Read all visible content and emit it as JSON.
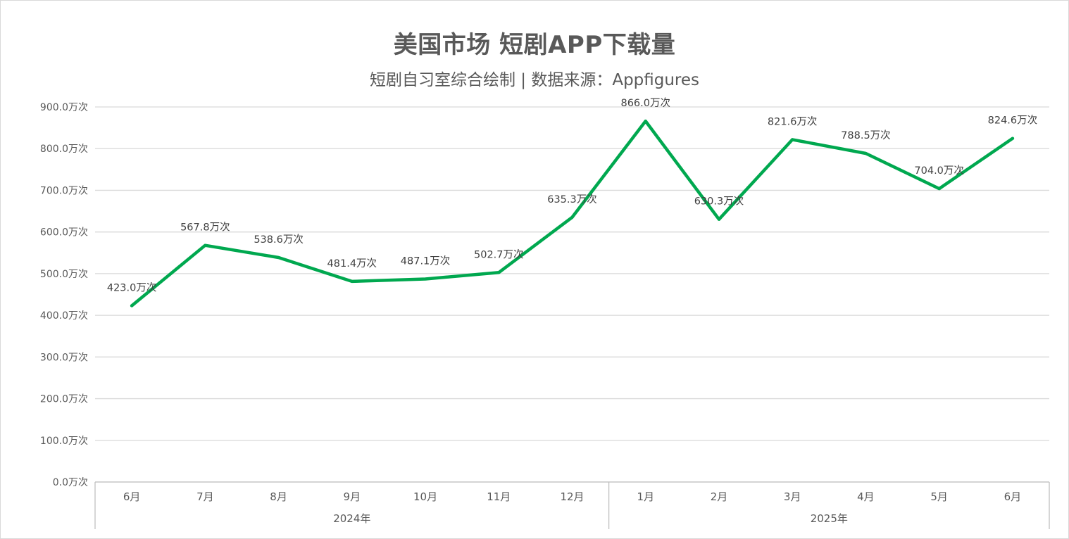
{
  "chart_data": {
    "type": "line",
    "title": "美国市场 短剧APP下载量",
    "subtitle": "短剧自习室综合绘制 | 数据来源：Appfigures",
    "categories": [
      "6月",
      "7月",
      "8月",
      "9月",
      "10月",
      "11月",
      "12月",
      "1月",
      "2月",
      "3月",
      "4月",
      "5月",
      "6月"
    ],
    "category_groups": [
      {
        "label": "2024年",
        "count": 7
      },
      {
        "label": "2025年",
        "count": 6
      }
    ],
    "series": [
      {
        "values": [
          423.0,
          567.8,
          538.6,
          481.4,
          487.1,
          502.7,
          635.3,
          866.0,
          630.3,
          821.6,
          788.5,
          704.0,
          824.6
        ],
        "color": "#00a84f"
      }
    ],
    "data_labels": [
      "423.0万次",
      "567.8万次",
      "538.6万次",
      "481.4万次",
      "487.1万次",
      "502.7万次",
      "635.3万次",
      "866.0万次",
      "630.3万次",
      "821.6万次",
      "788.5万次",
      "704.0万次",
      "824.6万次"
    ],
    "y_ticks": [
      "0.0万次",
      "100.0万次",
      "200.0万次",
      "300.0万次",
      "400.0万次",
      "500.0万次",
      "600.0万次",
      "700.0万次",
      "800.0万次",
      "900.0万次"
    ],
    "ylim": [
      0,
      900
    ],
    "grid": true,
    "legend": "none",
    "gridline_color": "#d9d9d9",
    "text_color": "#595959"
  }
}
